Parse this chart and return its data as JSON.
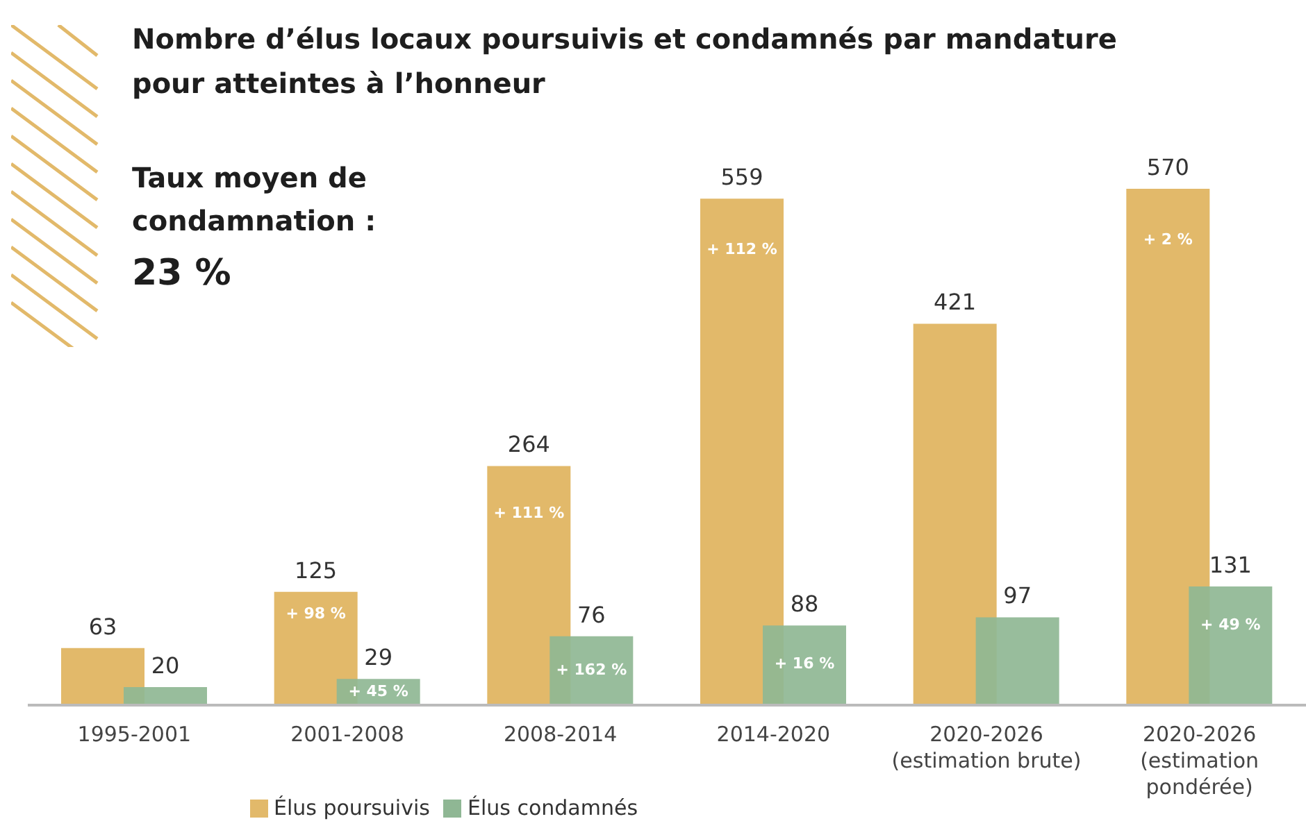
{
  "chart_data": {
    "type": "bar",
    "title": "Nombre d’élus locaux poursuivis et condamnés par mandature pour atteintes à l’honneur",
    "categories": [
      "1995-2001",
      "2001-2008",
      "2008-2014",
      "2014-2020",
      "2020-2026 (estimation brute)",
      "2020-2026 (estimation pondérée)"
    ],
    "series": [
      {
        "name": "Élus poursuivis",
        "color": "#e2b96a",
        "values": [
          63,
          125,
          264,
          559,
          421,
          570
        ]
      },
      {
        "name": "Élus condamnés",
        "color": "#8fb794",
        "values": [
          20,
          29,
          76,
          88,
          97,
          131
        ]
      }
    ],
    "ylim": [
      0,
      570
    ],
    "tick_labels": "x",
    "data_labels": true,
    "legend": "bottom",
    "grid": false,
    "annotations": [
      "Taux moyen de condamnation :",
      "23 %",
      {
        "text": "+ 98 %",
        "x": "2001-2008",
        "y": 125
      },
      {
        "text": "+ 111 %",
        "x": "2008-2014",
        "y": 264
      },
      {
        "text": "+ 112 %",
        "x": "2014-2020",
        "y": 559
      },
      {
        "text": "+ 2 %",
        "x": "2020-2026 (estimation pondérée)",
        "y": 570
      },
      {
        "text": "+ 45 %",
        "x": "2001-2008",
        "y": 29
      },
      {
        "text": "+ 162 %",
        "x": "2008-2014",
        "y": 76
      },
      {
        "text": "+ 16 %",
        "x": "2014-2020",
        "y": 88
      },
      {
        "text": "+ 49 %",
        "x": "2020-2026 (estimation pondérée)",
        "y": 131
      }
    ]
  }
}
